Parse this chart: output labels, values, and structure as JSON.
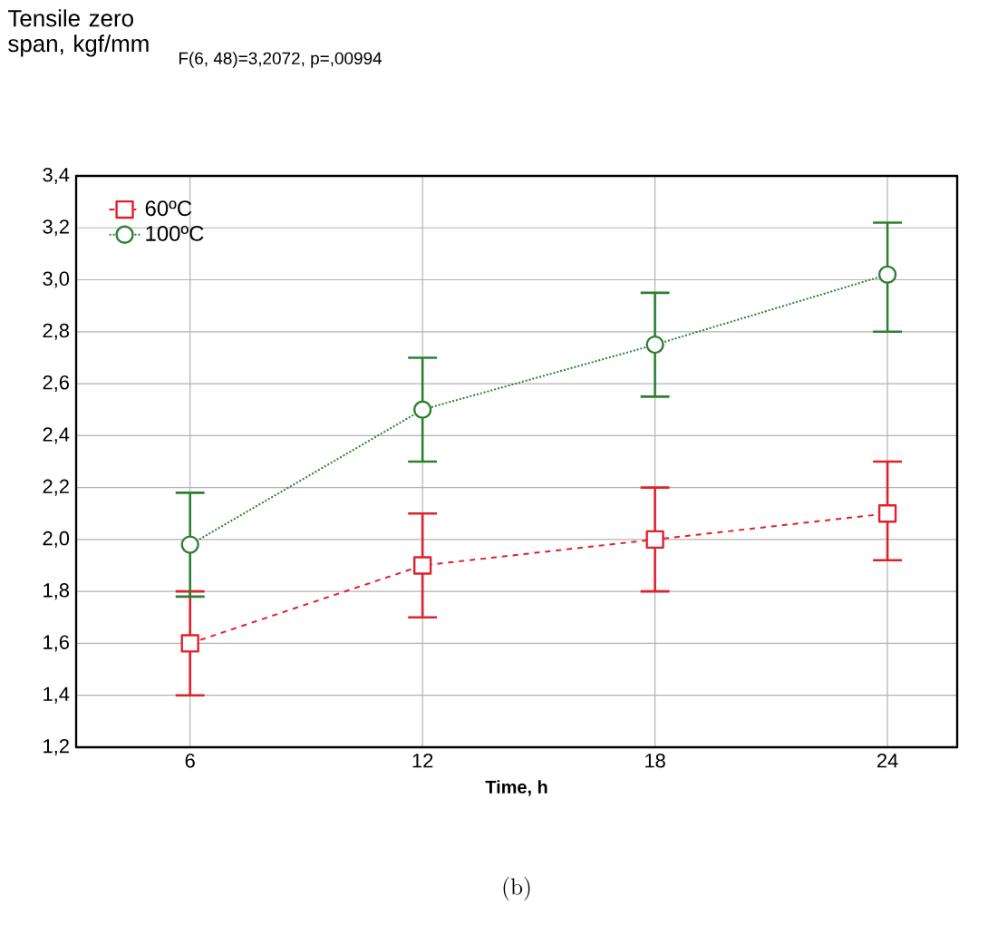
{
  "chart_data": {
    "type": "line",
    "title": "F(6, 48)=3,2072, p=,00994",
    "ylabel": "Tensile zero span, kgf/mm",
    "xlabel": "Time, h",
    "annotations": [
      "(b)"
    ],
    "categories": [
      "6",
      "12",
      "18",
      "24"
    ],
    "series": [
      {
        "name": "60ºC",
        "color": "#e0202a",
        "values": [
          1.6,
          1.9,
          2.0,
          2.1
        ],
        "errors": [
          [
            1.4,
            1.8
          ],
          [
            1.7,
            2.1
          ],
          [
            1.8,
            2.2
          ],
          [
            1.92,
            2.3
          ]
        ],
        "marker": "square",
        "line_style": "dashed"
      },
      {
        "name": "100ºC",
        "color": "#2e8030",
        "values": [
          1.98,
          2.5,
          2.75,
          3.02
        ],
        "errors": [
          [
            1.78,
            2.18
          ],
          [
            2.3,
            2.7
          ],
          [
            2.55,
            2.95
          ],
          [
            2.8,
            3.22
          ]
        ],
        "marker": "circle",
        "line_style": "dotted"
      }
    ],
    "ylim": [
      1.2,
      3.4
    ],
    "yticks": [
      {
        "value": 1.2,
        "label": "1,2"
      },
      {
        "value": 1.4,
        "label": "1,4"
      },
      {
        "value": 1.6,
        "label": "1,6"
      },
      {
        "value": 1.8,
        "label": "1,8"
      },
      {
        "value": 2.0,
        "label": "2,0"
      },
      {
        "value": 2.2,
        "label": "2,2"
      },
      {
        "value": 2.4,
        "label": "2,4"
      },
      {
        "value": 2.6,
        "label": "2,6"
      },
      {
        "value": 2.8,
        "label": "2,8"
      },
      {
        "value": 3.0,
        "label": "3,0"
      },
      {
        "value": 3.2,
        "label": "3,2"
      },
      {
        "value": 3.4,
        "label": "3,4"
      }
    ],
    "grid": true,
    "legend": "top left"
  }
}
